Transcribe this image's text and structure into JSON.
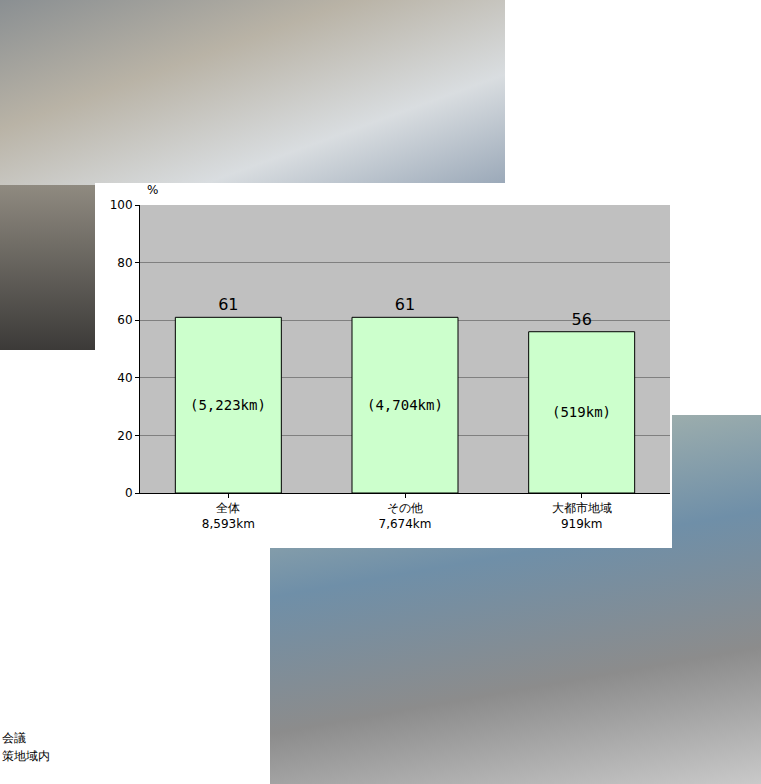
{
  "chart_data": {
    "type": "bar",
    "y_label": "%",
    "categories": [
      "全体",
      "その他",
      "大都市地域"
    ],
    "category_lengths": [
      "8,593km",
      "7,674km",
      "919km"
    ],
    "values": [
      61,
      61,
      56
    ],
    "inner_labels": [
      "(5,223km)",
      "(4,704km)",
      "(519km)"
    ],
    "color": "#ccffcc",
    "ylim": [
      0,
      100
    ],
    "yticks": [
      0,
      20,
      40,
      60,
      80,
      100
    ],
    "grid": true,
    "data_labels": true,
    "notes": [
      "会議",
      "策地域内"
    ]
  }
}
